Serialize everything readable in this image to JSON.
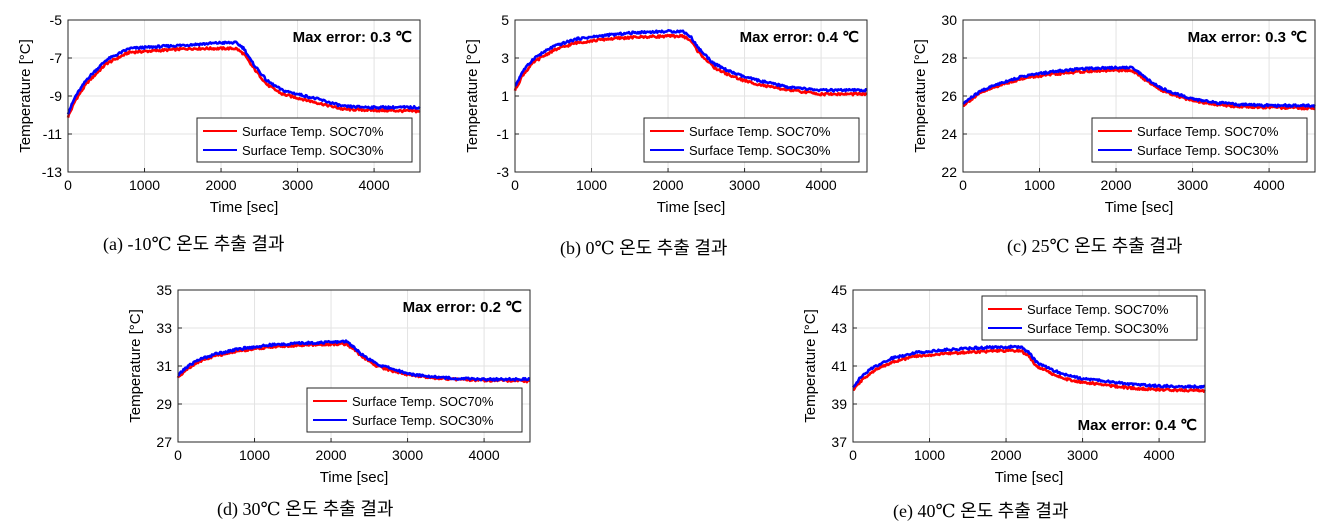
{
  "series_colors": {
    "SOC70": "#ff0000",
    "SOC30": "#0000ff"
  },
  "chart_data": [
    {
      "type": "line",
      "caption": "(a) -10℃ 온도 추출 결과",
      "xlabel": "Time [sec]",
      "ylabel": "Temperature [°C]",
      "xlim": [
        0,
        4600
      ],
      "ylim": [
        -13,
        -5
      ],
      "xticks": [
        0,
        1000,
        2000,
        3000,
        4000
      ],
      "yticks": [
        -13,
        -11,
        -9,
        -7,
        -5
      ],
      "grid": true,
      "legend": "bottom-right",
      "annotation": "Max error: 0.3 ℃",
      "series": [
        {
          "name": "Surface Temp. SOC70%",
          "x": [
            0,
            100,
            250,
            500,
            800,
            1200,
            1600,
            2000,
            2200,
            2300,
            2400,
            2600,
            2800,
            3000,
            3300,
            3600,
            4000,
            4600
          ],
          "y": [
            -10.1,
            -9.2,
            -8.3,
            -7.3,
            -6.7,
            -6.6,
            -6.5,
            -6.5,
            -6.5,
            -6.8,
            -7.4,
            -8.4,
            -8.9,
            -9.1,
            -9.4,
            -9.7,
            -9.75,
            -9.8
          ]
        },
        {
          "name": "Surface Temp. SOC30%",
          "x": [
            0,
            100,
            250,
            500,
            800,
            1200,
            1600,
            2000,
            2200,
            2300,
            2400,
            2600,
            2800,
            3000,
            3300,
            3600,
            4000,
            4600
          ],
          "y": [
            -9.9,
            -9.0,
            -8.1,
            -7.1,
            -6.5,
            -6.4,
            -6.3,
            -6.2,
            -6.2,
            -6.5,
            -7.2,
            -8.2,
            -8.7,
            -8.9,
            -9.2,
            -9.55,
            -9.6,
            -9.6
          ]
        }
      ]
    },
    {
      "type": "line",
      "caption": "(b) 0℃ 온도 추출 결과",
      "xlabel": "Time [sec]",
      "ylabel": "Temperature [°C]",
      "xlim": [
        0,
        4600
      ],
      "ylim": [
        -3,
        5
      ],
      "xticks": [
        0,
        1000,
        2000,
        3000,
        4000
      ],
      "yticks": [
        -3,
        -1,
        1,
        3,
        5
      ],
      "grid": true,
      "legend": "bottom-right",
      "annotation": "Max error: 0.4 ℃",
      "series": [
        {
          "name": "Surface Temp. SOC70%",
          "x": [
            0,
            100,
            250,
            500,
            800,
            1200,
            1600,
            2000,
            2200,
            2300,
            2400,
            2600,
            2800,
            3000,
            3300,
            3600,
            4000,
            4600
          ],
          "y": [
            1.3,
            2.1,
            2.8,
            3.4,
            3.8,
            4.0,
            4.1,
            4.15,
            4.15,
            3.9,
            3.3,
            2.5,
            2.1,
            1.8,
            1.5,
            1.3,
            1.1,
            1.1
          ]
        },
        {
          "name": "Surface Temp. SOC30%",
          "x": [
            0,
            100,
            250,
            500,
            800,
            1200,
            1600,
            2000,
            2200,
            2300,
            2400,
            2600,
            2800,
            3000,
            3300,
            3600,
            4000,
            4600
          ],
          "y": [
            1.5,
            2.3,
            3.0,
            3.6,
            4.0,
            4.2,
            4.35,
            4.4,
            4.4,
            4.1,
            3.5,
            2.7,
            2.3,
            2.0,
            1.7,
            1.45,
            1.3,
            1.3
          ]
        }
      ]
    },
    {
      "type": "line",
      "caption": "(c) 25℃ 온도 추출 결과",
      "xlabel": "Time [sec]",
      "ylabel": "Temperature [°C]",
      "xlim": [
        0,
        4600
      ],
      "ylim": [
        22,
        30
      ],
      "xticks": [
        0,
        1000,
        2000,
        3000,
        4000
      ],
      "yticks": [
        22,
        24,
        26,
        28,
        30
      ],
      "grid": true,
      "legend": "bottom-right",
      "annotation": "Max error: 0.3 ℃",
      "series": [
        {
          "name": "Surface Temp. SOC70%",
          "x": [
            0,
            100,
            250,
            500,
            800,
            1200,
            1600,
            2000,
            2200,
            2300,
            2400,
            2600,
            2800,
            3000,
            3300,
            3600,
            4000,
            4600
          ],
          "y": [
            25.5,
            25.8,
            26.2,
            26.6,
            26.95,
            27.15,
            27.3,
            27.35,
            27.35,
            27.1,
            26.8,
            26.3,
            26.0,
            25.75,
            25.55,
            25.45,
            25.4,
            25.35
          ]
        },
        {
          "name": "Surface Temp. SOC30%",
          "x": [
            0,
            100,
            250,
            500,
            800,
            1200,
            1600,
            2000,
            2200,
            2300,
            2400,
            2600,
            2800,
            3000,
            3300,
            3600,
            4000,
            4600
          ],
          "y": [
            25.6,
            25.9,
            26.3,
            26.7,
            27.05,
            27.3,
            27.45,
            27.5,
            27.5,
            27.25,
            26.9,
            26.4,
            26.1,
            25.85,
            25.65,
            25.55,
            25.5,
            25.5
          ]
        }
      ]
    },
    {
      "type": "line",
      "caption": "(d) 30℃ 온도 추출 결과",
      "xlabel": "Time [sec]",
      "ylabel": "Temperature [°C]",
      "xlim": [
        0,
        4600
      ],
      "ylim": [
        27,
        35
      ],
      "xticks": [
        0,
        1000,
        2000,
        3000,
        4000
      ],
      "yticks": [
        27,
        29,
        31,
        33,
        35
      ],
      "grid": true,
      "legend": "bottom-right",
      "annotation": "Max error: 0.2 ℃",
      "series": [
        {
          "name": "Surface Temp. SOC70%",
          "x": [
            0,
            100,
            250,
            500,
            800,
            1200,
            1600,
            2000,
            2200,
            2300,
            2400,
            2600,
            2800,
            3000,
            3300,
            3600,
            4000,
            4600
          ],
          "y": [
            30.4,
            30.8,
            31.2,
            31.55,
            31.8,
            32.0,
            32.1,
            32.15,
            32.15,
            31.9,
            31.5,
            31.0,
            30.75,
            30.55,
            30.4,
            30.3,
            30.25,
            30.2
          ]
        },
        {
          "name": "Surface Temp. SOC30%",
          "x": [
            0,
            100,
            250,
            500,
            800,
            1200,
            1600,
            2000,
            2200,
            2300,
            2400,
            2600,
            2800,
            3000,
            3300,
            3600,
            4000,
            4600
          ],
          "y": [
            30.5,
            30.9,
            31.3,
            31.65,
            31.9,
            32.1,
            32.2,
            32.25,
            32.3,
            32.0,
            31.6,
            31.1,
            30.85,
            30.6,
            30.45,
            30.35,
            30.3,
            30.3
          ]
        }
      ]
    },
    {
      "type": "line",
      "caption": "(e) 40℃ 온도 추출 결과",
      "xlabel": "Time [sec]",
      "ylabel": "Temperature [°C]",
      "xlim": [
        0,
        4600
      ],
      "ylim": [
        37,
        45
      ],
      "xticks": [
        0,
        1000,
        2000,
        3000,
        4000
      ],
      "yticks": [
        37,
        39,
        41,
        43,
        45
      ],
      "grid": true,
      "legend": "top-right",
      "annotation": "Max error: 0.4 ℃",
      "series": [
        {
          "name": "Surface Temp. SOC70%",
          "x": [
            0,
            100,
            250,
            500,
            800,
            1200,
            1600,
            2000,
            2200,
            2300,
            2400,
            2600,
            2800,
            3000,
            3300,
            3600,
            4000,
            4600
          ],
          "y": [
            39.7,
            40.2,
            40.7,
            41.2,
            41.5,
            41.65,
            41.75,
            41.8,
            41.8,
            41.5,
            41.0,
            40.6,
            40.3,
            40.15,
            40.0,
            39.85,
            39.75,
            39.7
          ]
        },
        {
          "name": "Surface Temp. SOC30%",
          "x": [
            0,
            100,
            250,
            500,
            800,
            1200,
            1600,
            2000,
            2200,
            2300,
            2400,
            2600,
            2800,
            3000,
            3300,
            3600,
            4000,
            4600
          ],
          "y": [
            39.9,
            40.4,
            40.9,
            41.4,
            41.7,
            41.85,
            41.95,
            42.0,
            42.0,
            41.7,
            41.2,
            40.8,
            40.5,
            40.35,
            40.2,
            40.05,
            39.95,
            39.9
          ]
        }
      ]
    }
  ]
}
